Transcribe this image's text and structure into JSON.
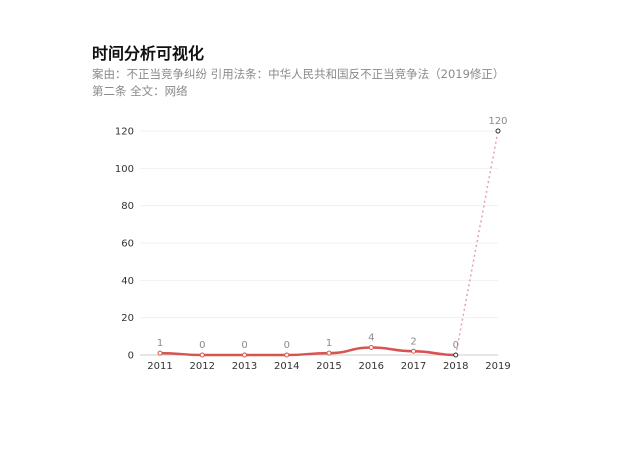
{
  "title": "时间分析可视化",
  "subtitle": "案由：不正当竞争纠纷  引用法条：中华人民共和国反不正当竞争法（2019修正）第二条  全文：网络",
  "chart_data": {
    "type": "line",
    "categories": [
      "2011",
      "2012",
      "2013",
      "2014",
      "2015",
      "2016",
      "2017",
      "2018",
      "2019"
    ],
    "series": [
      {
        "values": [
          1,
          0,
          0,
          0,
          1,
          4,
          2,
          0,
          120
        ]
      }
    ],
    "y_ticks": [
      "0",
      "20",
      "40",
      "60",
      "80",
      "100",
      "120"
    ],
    "ylim": [
      0,
      120
    ],
    "grid": true,
    "line_color": "#d9534f",
    "last_segment_style": "dotted",
    "last_segment_color": "#e8a0a8"
  }
}
